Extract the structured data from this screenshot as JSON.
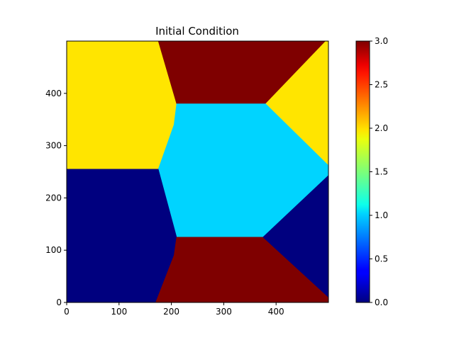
{
  "chart_data": {
    "type": "heatmap",
    "title": "Initial Condition",
    "xlabel": "",
    "ylabel": "",
    "xlim": [
      0,
      500
    ],
    "ylim": [
      0,
      500
    ],
    "x_ticks": [
      0,
      100,
      200,
      300,
      400
    ],
    "y_ticks": [
      0,
      100,
      200,
      300,
      400
    ],
    "x_tick_labels": [
      "0",
      "100",
      "200",
      "300",
      "400"
    ],
    "y_tick_labels": [
      "0",
      "100",
      "200",
      "300",
      "400"
    ],
    "colormap": "jet",
    "colorbar": {
      "range": [
        0.0,
        3.0
      ],
      "ticks": [
        0.0,
        0.5,
        1.0,
        1.5,
        2.0,
        2.5,
        3.0
      ],
      "tick_labels": [
        "0.0",
        "0.5",
        "1.0",
        "1.5",
        "2.0",
        "2.5",
        "3.0"
      ]
    },
    "region_colors": {
      "0": "#00007f",
      "1": "#00d4ff",
      "2": "#ffe500",
      "3": "#7f0000"
    },
    "regions": [
      {
        "value": 2,
        "polygon": [
          [
            0,
            500
          ],
          [
            175,
            500
          ],
          [
            210,
            380
          ],
          [
            205,
            340
          ],
          [
            175,
            255
          ],
          [
            0,
            255
          ]
        ]
      },
      {
        "value": 3,
        "polygon": [
          [
            175,
            500
          ],
          [
            495,
            500
          ],
          [
            380,
            380
          ],
          [
            210,
            380
          ]
        ]
      },
      {
        "value": 2,
        "polygon": [
          [
            495,
            500
          ],
          [
            500,
            500
          ],
          [
            500,
            262
          ],
          [
            380,
            380
          ]
        ]
      },
      {
        "value": 1,
        "polygon": [
          [
            210,
            380
          ],
          [
            380,
            380
          ],
          [
            500,
            262
          ],
          [
            500,
            243
          ],
          [
            375,
            125
          ],
          [
            210,
            125
          ],
          [
            175,
            255
          ],
          [
            205,
            340
          ]
        ]
      },
      {
        "value": 0,
        "polygon": [
          [
            0,
            255
          ],
          [
            175,
            255
          ],
          [
            210,
            125
          ],
          [
            205,
            90
          ],
          [
            170,
            0
          ],
          [
            0,
            0
          ]
        ]
      },
      {
        "value": 3,
        "polygon": [
          [
            210,
            125
          ],
          [
            375,
            125
          ],
          [
            500,
            10
          ],
          [
            500,
            0
          ],
          [
            170,
            0
          ],
          [
            205,
            90
          ]
        ]
      },
      {
        "value": 0,
        "polygon": [
          [
            375,
            125
          ],
          [
            500,
            243
          ],
          [
            500,
            10
          ]
        ]
      }
    ]
  }
}
